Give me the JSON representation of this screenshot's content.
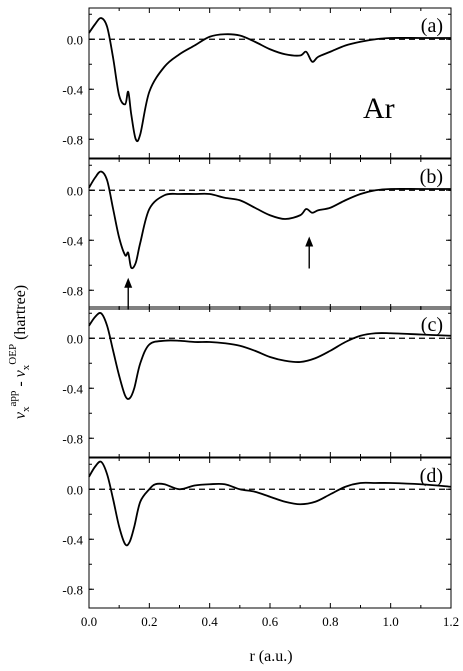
{
  "figure": {
    "element": "Ar",
    "ylabel_sup1": "app",
    "ylabel_sup2": "OEP",
    "ylabel_unit": "(hartree)",
    "xlabel": "r (a.u.)"
  },
  "chart_data": [
    {
      "type": "line",
      "panel_label": "(a)",
      "xlim": [
        0,
        1.2
      ],
      "ylim": [
        -0.95,
        0.25
      ],
      "yticks": [
        0.0,
        -0.4,
        -0.8
      ],
      "ytick_labels": [
        "0.0",
        "-0.4",
        "-0.8"
      ],
      "reference_line": 0,
      "annotation": "Ar",
      "x": [
        0,
        0.02,
        0.04,
        0.06,
        0.08,
        0.1,
        0.12,
        0.13,
        0.14,
        0.155,
        0.17,
        0.2,
        0.25,
        0.3,
        0.35,
        0.4,
        0.45,
        0.5,
        0.55,
        0.6,
        0.65,
        0.7,
        0.72,
        0.74,
        0.76,
        0.8,
        0.85,
        0.9,
        0.95,
        1.0,
        1.1,
        1.2
      ],
      "y": [
        0.05,
        0.12,
        0.17,
        0.1,
        -0.15,
        -0.45,
        -0.52,
        -0.42,
        -0.6,
        -0.8,
        -0.76,
        -0.42,
        -0.22,
        -0.12,
        -0.05,
        0.02,
        0.04,
        0.03,
        -0.02,
        -0.08,
        -0.12,
        -0.13,
        -0.1,
        -0.18,
        -0.14,
        -0.1,
        -0.05,
        -0.02,
        0.0,
        0.01,
        0.01,
        0.01
      ]
    },
    {
      "type": "line",
      "panel_label": "(b)",
      "xlim": [
        0,
        1.2
      ],
      "ylim": [
        -0.95,
        0.25
      ],
      "yticks": [
        0.0,
        -0.4,
        -0.8
      ],
      "ytick_labels": [
        "0.0",
        "-0.4",
        "-0.8"
      ],
      "reference_line": 0,
      "arrow_positions_x": [
        0.13,
        0.73
      ],
      "x": [
        0,
        0.02,
        0.04,
        0.06,
        0.08,
        0.1,
        0.12,
        0.13,
        0.14,
        0.155,
        0.17,
        0.2,
        0.25,
        0.3,
        0.35,
        0.4,
        0.45,
        0.5,
        0.55,
        0.6,
        0.65,
        0.7,
        0.72,
        0.74,
        0.76,
        0.8,
        0.85,
        0.9,
        0.95,
        1.0,
        1.1,
        1.2
      ],
      "y": [
        0.02,
        0.1,
        0.15,
        0.08,
        -0.15,
        -0.38,
        -0.52,
        -0.5,
        -0.62,
        -0.58,
        -0.42,
        -0.15,
        -0.04,
        -0.03,
        -0.03,
        -0.03,
        -0.06,
        -0.08,
        -0.14,
        -0.2,
        -0.23,
        -0.2,
        -0.15,
        -0.18,
        -0.16,
        -0.14,
        -0.08,
        -0.03,
        0.0,
        0.01,
        0.01,
        0.01
      ]
    },
    {
      "type": "line",
      "panel_label": "(c)",
      "xlim": [
        0,
        1.2
      ],
      "ylim": [
        -0.95,
        0.25
      ],
      "yticks": [
        0.0,
        -0.4,
        -0.8
      ],
      "ytick_labels": [
        "0.0",
        "-0.4",
        "-0.8"
      ],
      "reference_line": 0,
      "x": [
        0,
        0.02,
        0.04,
        0.06,
        0.08,
        0.1,
        0.12,
        0.135,
        0.15,
        0.17,
        0.2,
        0.25,
        0.3,
        0.35,
        0.4,
        0.45,
        0.5,
        0.55,
        0.6,
        0.65,
        0.7,
        0.75,
        0.8,
        0.85,
        0.9,
        0.95,
        1.0,
        1.1,
        1.2
      ],
      "y": [
        0.1,
        0.17,
        0.2,
        0.1,
        -0.1,
        -0.3,
        -0.46,
        -0.48,
        -0.4,
        -0.2,
        -0.05,
        -0.02,
        -0.02,
        -0.03,
        -0.03,
        -0.04,
        -0.06,
        -0.1,
        -0.15,
        -0.18,
        -0.19,
        -0.16,
        -0.1,
        -0.03,
        0.02,
        0.04,
        0.04,
        0.03,
        0.02
      ]
    },
    {
      "type": "line",
      "panel_label": "(d)",
      "xlim": [
        0,
        1.2
      ],
      "ylim": [
        -0.95,
        0.25
      ],
      "yticks": [
        0.0,
        -0.4,
        -0.8
      ],
      "ytick_labels": [
        "0.0",
        "-0.4",
        "-0.8"
      ],
      "reference_line": 0,
      "xticks": [
        0.0,
        0.2,
        0.4,
        0.6,
        0.8,
        1.0,
        1.2
      ],
      "xtick_labels": [
        "0.0",
        "0.2",
        "0.4",
        "0.6",
        "0.8",
        "1.0",
        "1.2"
      ],
      "x": [
        0,
        0.02,
        0.04,
        0.06,
        0.08,
        0.1,
        0.12,
        0.135,
        0.15,
        0.17,
        0.2,
        0.22,
        0.25,
        0.3,
        0.35,
        0.4,
        0.45,
        0.5,
        0.55,
        0.6,
        0.65,
        0.7,
        0.75,
        0.8,
        0.85,
        0.9,
        0.95,
        1.0,
        1.1,
        1.2
      ],
      "y": [
        0.1,
        0.18,
        0.22,
        0.12,
        -0.08,
        -0.3,
        -0.44,
        -0.42,
        -0.3,
        -0.1,
        0.0,
        0.04,
        0.04,
        0.0,
        0.03,
        0.04,
        0.04,
        0.0,
        -0.02,
        -0.06,
        -0.1,
        -0.12,
        -0.1,
        -0.04,
        0.02,
        0.05,
        0.05,
        0.05,
        0.04,
        0.02
      ]
    }
  ]
}
